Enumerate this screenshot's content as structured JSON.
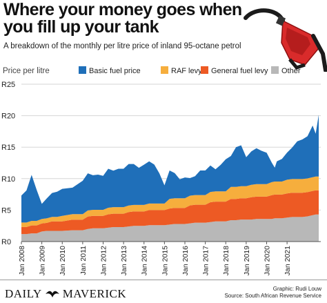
{
  "header": {
    "title": "Where your money goes when you fill up your tank",
    "subtitle": "A breakdown of the monthly per litre price of inland 95-octane petrol",
    "icon": "fuel-pump-nozzle-icon"
  },
  "footer": {
    "logo_left": "DAILY",
    "logo_right": "MAVERICK",
    "logo_icon": "maverick-bird-icon",
    "graphic_credit": "Graphic: Rudi Louw",
    "source": "Source: South African Revenue Service"
  },
  "colors": {
    "basic_fuel_price": "#1f6fb9",
    "raf_levy": "#f6ae3d",
    "general_fuel_levy": "#ed5a24",
    "other": "#b8b8b8",
    "pump_red": "#d92b2b"
  },
  "chart_data": {
    "type": "area",
    "stacked": true,
    "ylabel": "Price per litre",
    "ylim": [
      0,
      25
    ],
    "yticks": [
      0,
      5,
      10,
      15,
      20,
      25
    ],
    "ytick_labels": [
      "R0",
      "R5",
      "R10",
      "R15",
      "R20",
      "R25"
    ],
    "xlim": [
      2008.0,
      2022.65
    ],
    "xticks": [
      2008,
      2009,
      2010,
      2011,
      2012,
      2013,
      2014,
      2015,
      2016,
      2017,
      2018,
      2019,
      2020,
      2021
    ],
    "xtick_labels": [
      "Jan 2008",
      "Jan 2009",
      "Jan 2010",
      "Jan 2011",
      "Jan 2012",
      "Jan 2013",
      "Jan 2014",
      "Jan 2015",
      "Jan 2016",
      "Jan 2017",
      "Jan 2018",
      "Jan 2019",
      "Jan 2020",
      "Jan 2021"
    ],
    "grid": "horizontal",
    "legend_position": "top",
    "x": [
      2008.0,
      2008.25,
      2008.5,
      2008.75,
      2009.0,
      2009.25,
      2009.5,
      2009.75,
      2010.0,
      2010.5,
      2011.0,
      2011.25,
      2011.5,
      2011.75,
      2012.0,
      2012.25,
      2012.5,
      2012.75,
      2013.0,
      2013.25,
      2013.5,
      2013.75,
      2014.0,
      2014.25,
      2014.5,
      2014.75,
      2015.0,
      2015.25,
      2015.5,
      2015.75,
      2016.0,
      2016.25,
      2016.5,
      2016.75,
      2017.0,
      2017.25,
      2017.5,
      2017.75,
      2018.0,
      2018.25,
      2018.5,
      2018.75,
      2019.0,
      2019.25,
      2019.5,
      2019.75,
      2020.0,
      2020.25,
      2020.4,
      2020.5,
      2020.75,
      2021.0,
      2021.25,
      2021.5,
      2021.75,
      2022.0,
      2022.25,
      2022.4,
      2022.55
    ],
    "series": [
      {
        "name": "Other",
        "values": [
          1.2,
          1.2,
          1.3,
          1.3,
          1.6,
          1.7,
          1.7,
          1.7,
          1.7,
          1.8,
          1.8,
          2.0,
          2.1,
          2.1,
          2.1,
          2.2,
          2.3,
          2.3,
          2.3,
          2.4,
          2.5,
          2.5,
          2.5,
          2.6,
          2.6,
          2.6,
          2.6,
          2.7,
          2.8,
          2.8,
          2.8,
          2.9,
          3.0,
          3.0,
          3.0,
          3.1,
          3.2,
          3.2,
          3.2,
          3.4,
          3.4,
          3.5,
          3.5,
          3.5,
          3.6,
          3.6,
          3.6,
          3.6,
          3.7,
          3.7,
          3.7,
          3.8,
          3.9,
          3.9,
          3.9,
          4.0,
          4.2,
          4.3,
          4.3
        ]
      },
      {
        "name": "General fuel levy",
        "values": [
          1.11,
          1.11,
          1.27,
          1.27,
          1.27,
          1.27,
          1.5,
          1.5,
          1.5,
          1.68,
          1.68,
          1.98,
          1.98,
          1.98,
          1.98,
          2.13,
          2.13,
          2.13,
          2.13,
          2.28,
          2.28,
          2.28,
          2.28,
          2.4,
          2.4,
          2.4,
          2.4,
          2.55,
          2.55,
          2.55,
          2.55,
          2.85,
          2.85,
          2.85,
          2.85,
          3.15,
          3.15,
          3.15,
          3.15,
          3.37,
          3.37,
          3.37,
          3.37,
          3.54,
          3.54,
          3.54,
          3.54,
          3.77,
          3.77,
          3.77,
          3.77,
          3.85,
          3.85,
          3.85,
          3.85,
          3.85,
          3.85,
          3.85,
          3.85
        ]
      },
      {
        "name": "RAF levy",
        "values": [
          0.72,
          0.72,
          0.72,
          0.72,
          0.72,
          0.72,
          0.72,
          0.72,
          0.88,
          0.88,
          0.88,
          0.96,
          0.96,
          0.96,
          0.96,
          1.04,
          1.04,
          1.04,
          1.04,
          1.04,
          1.04,
          1.04,
          1.04,
          1.04,
          1.04,
          1.04,
          1.04,
          1.54,
          1.54,
          1.54,
          1.54,
          1.54,
          1.54,
          1.54,
          1.54,
          1.63,
          1.63,
          1.63,
          1.63,
          1.93,
          1.93,
          1.93,
          1.93,
          1.98,
          1.98,
          1.98,
          1.98,
          2.07,
          2.07,
          2.07,
          2.07,
          2.18,
          2.18,
          2.18,
          2.18,
          2.18,
          2.18,
          2.18,
          2.18
        ]
      },
      {
        "name": "Basic fuel price",
        "values": [
          4.3,
          5.1,
          7.3,
          4.9,
          2.4,
          3.2,
          3.8,
          4.0,
          4.3,
          4.2,
          5.3,
          5.9,
          5.5,
          5.6,
          5.4,
          6.2,
          5.8,
          6.1,
          6.1,
          6.6,
          6.5,
          5.9,
          6.4,
          6.7,
          6.2,
          4.8,
          2.9,
          4.5,
          4.0,
          3.0,
          3.3,
          2.8,
          3.0,
          3.9,
          3.9,
          4.2,
          3.5,
          4.2,
          5.1,
          4.9,
          6.3,
          6.5,
          4.6,
          5.3,
          5.7,
          5.3,
          5.0,
          3.1,
          2.2,
          3.2,
          3.6,
          4.3,
          5.0,
          6.0,
          6.3,
          6.7,
          8.2,
          6.8,
          9.8
        ]
      }
    ]
  }
}
